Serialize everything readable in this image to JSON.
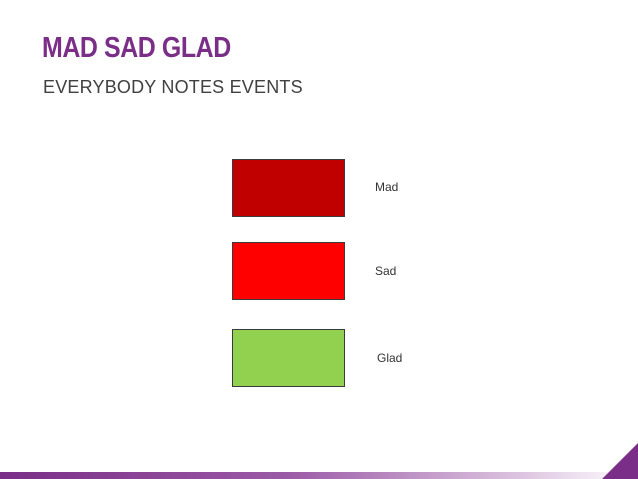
{
  "slide": {
    "title": "MAD SAD GLAD",
    "subtitle": "EVERYBODY NOTES EVENTS",
    "items": [
      {
        "label": "Mad",
        "color": "#c00000"
      },
      {
        "label": "Sad",
        "color": "#ff0000"
      },
      {
        "label": "Glad",
        "color": "#92d050"
      }
    ]
  },
  "theme": {
    "accent": "#7a2e87",
    "accent_light": "#e3cfe6"
  }
}
